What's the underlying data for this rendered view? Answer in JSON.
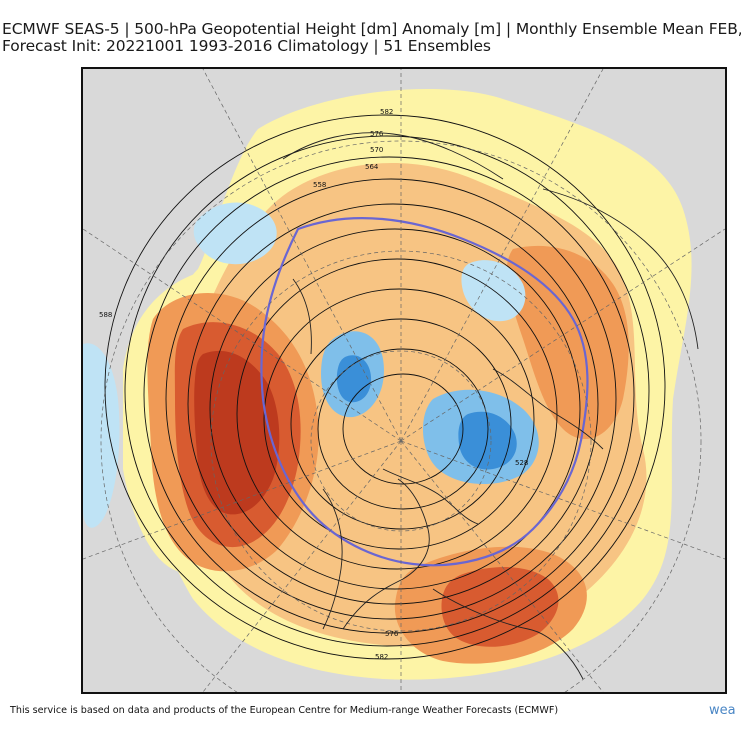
{
  "header": {
    "title_line1": "ECMWF SEAS-5 | 500-hPa Geopotential Height [dm] Anomaly [m] | Monthly Ensemble Mean FEB,",
    "title_line2": "Forecast Init: 20221001     1993-2016 Climatology | 51 Ensembles"
  },
  "map": {
    "projection": "north-polar-stereographic",
    "contour_labels": [
      "582",
      "576",
      "570",
      "564",
      "558",
      "528",
      "576",
      "582",
      "588"
    ],
    "colors": {
      "land": "#d9d9d9",
      "ocean": "#d9d9d9",
      "neg_light": "#bfe3f5",
      "neg_mid": "#7fbfea",
      "neg_deep": "#3a8fd8",
      "pos_light": "#fdf4a6",
      "pos_yellow": "#fbe59a",
      "pos_orange_light": "#f7c483",
      "pos_orange": "#f09a56",
      "pos_red": "#d85b30",
      "pos_deep_red": "#bd3a1e",
      "highlight_contour": "#6a66d2",
      "contour": "#111111"
    }
  },
  "footer": {
    "credit": "This service is based on data and products of the European Centre for Medium-range Weather Forecasts (ECMWF)",
    "brand": "wea"
  }
}
